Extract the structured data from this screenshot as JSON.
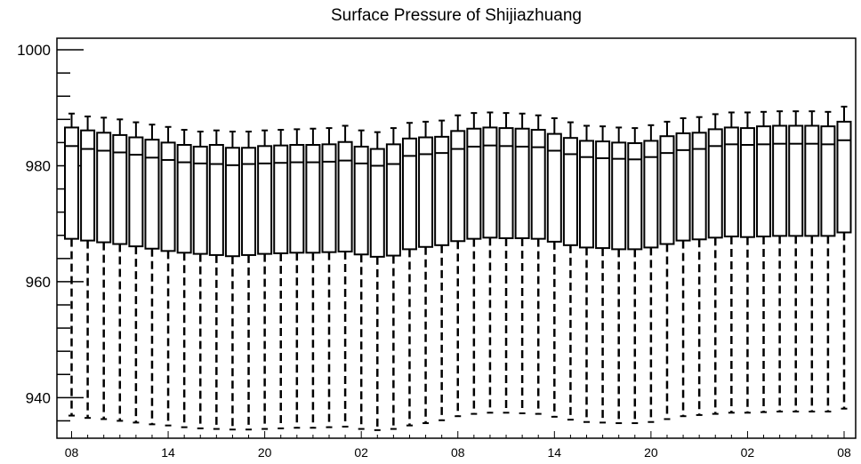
{
  "chart_data": {
    "type": "box",
    "title": "Surface Pressure of Shijiazhuang",
    "xlabel": "",
    "ylabel": "",
    "ylim": [
      933,
      1002
    ],
    "yticks": [
      940,
      960,
      980,
      1000
    ],
    "ytick_labels": [
      "940",
      "960",
      "980",
      "1000"
    ],
    "xtick_labels": [
      "08",
      "14",
      "20",
      "02",
      "08",
      "14",
      "20",
      "02",
      "08"
    ],
    "xtick_positions": [
      0,
      6,
      12,
      18,
      24,
      30,
      36,
      42,
      48
    ],
    "grid": false,
    "legend": "none",
    "whisker_style": "dashed",
    "boxes": [
      {
        "hour": 0,
        "min": 936.9,
        "q1": 967.4,
        "median": 983.4,
        "q3": 986.6,
        "max": 989.0
      },
      {
        "hour": 1,
        "min": 936.5,
        "q1": 967.1,
        "median": 982.9,
        "q3": 986.1,
        "max": 988.5
      },
      {
        "hour": 2,
        "min": 936.3,
        "q1": 966.8,
        "median": 982.6,
        "q3": 985.7,
        "max": 988.3
      },
      {
        "hour": 3,
        "min": 936.0,
        "q1": 966.5,
        "median": 982.3,
        "q3": 985.3,
        "max": 988.0
      },
      {
        "hour": 4,
        "min": 935.7,
        "q1": 966.1,
        "median": 981.9,
        "q3": 984.9,
        "max": 987.5
      },
      {
        "hour": 5,
        "min": 935.4,
        "q1": 965.7,
        "median": 981.4,
        "q3": 984.5,
        "max": 987.1
      },
      {
        "hour": 6,
        "min": 935.2,
        "q1": 965.3,
        "median": 981.0,
        "q3": 984.0,
        "max": 986.7
      },
      {
        "hour": 7,
        "min": 934.9,
        "q1": 965.0,
        "median": 980.6,
        "q3": 983.6,
        "max": 986.2
      },
      {
        "hour": 8,
        "min": 934.7,
        "q1": 964.8,
        "median": 980.4,
        "q3": 983.3,
        "max": 985.9
      },
      {
        "hour": 9,
        "min": 934.6,
        "q1": 964.6,
        "median": 980.3,
        "q3": 983.6,
        "max": 986.1
      },
      {
        "hour": 10,
        "min": 934.5,
        "q1": 964.4,
        "median": 980.1,
        "q3": 983.1,
        "max": 985.9
      },
      {
        "hour": 11,
        "min": 934.5,
        "q1": 964.6,
        "median": 980.3,
        "q3": 983.1,
        "max": 985.9
      },
      {
        "hour": 12,
        "min": 934.6,
        "q1": 964.8,
        "median": 980.4,
        "q3": 983.4,
        "max": 986.1
      },
      {
        "hour": 13,
        "min": 934.7,
        "q1": 964.9,
        "median": 980.5,
        "q3": 983.5,
        "max": 986.2
      },
      {
        "hour": 14,
        "min": 934.8,
        "q1": 965.0,
        "median": 980.6,
        "q3": 983.6,
        "max": 986.3
      },
      {
        "hour": 15,
        "min": 934.8,
        "q1": 965.0,
        "median": 980.6,
        "q3": 983.6,
        "max": 986.4
      },
      {
        "hour": 16,
        "min": 934.9,
        "q1": 965.1,
        "median": 980.7,
        "q3": 983.7,
        "max": 986.5
      },
      {
        "hour": 17,
        "min": 935.0,
        "q1": 965.2,
        "median": 980.9,
        "q3": 984.1,
        "max": 986.9
      },
      {
        "hour": 18,
        "min": 934.6,
        "q1": 964.7,
        "median": 980.4,
        "q3": 983.3,
        "max": 986.1
      },
      {
        "hour": 19,
        "min": 934.4,
        "q1": 964.3,
        "median": 980.0,
        "q3": 982.9,
        "max": 985.8
      },
      {
        "hour": 20,
        "min": 934.6,
        "q1": 964.5,
        "median": 980.3,
        "q3": 983.7,
        "max": 986.5
      },
      {
        "hour": 21,
        "min": 935.2,
        "q1": 965.6,
        "median": 981.7,
        "q3": 984.7,
        "max": 987.4
      },
      {
        "hour": 22,
        "min": 935.6,
        "q1": 966.0,
        "median": 982.0,
        "q3": 984.9,
        "max": 987.6
      },
      {
        "hour": 23,
        "min": 936.1,
        "q1": 966.3,
        "median": 982.2,
        "q3": 985.0,
        "max": 987.8
      },
      {
        "hour": 24,
        "min": 936.8,
        "q1": 967.0,
        "median": 982.9,
        "q3": 986.0,
        "max": 988.7
      },
      {
        "hour": 25,
        "min": 937.2,
        "q1": 967.4,
        "median": 983.3,
        "q3": 986.4,
        "max": 989.1
      },
      {
        "hour": 26,
        "min": 937.4,
        "q1": 967.6,
        "median": 983.5,
        "q3": 986.6,
        "max": 989.2
      },
      {
        "hour": 27,
        "min": 937.4,
        "q1": 967.5,
        "median": 983.4,
        "q3": 986.5,
        "max": 989.1
      },
      {
        "hour": 28,
        "min": 937.3,
        "q1": 967.5,
        "median": 983.3,
        "q3": 986.4,
        "max": 989.0
      },
      {
        "hour": 29,
        "min": 937.2,
        "q1": 967.4,
        "median": 983.2,
        "q3": 986.2,
        "max": 988.7
      },
      {
        "hour": 30,
        "min": 936.7,
        "q1": 966.9,
        "median": 982.6,
        "q3": 985.5,
        "max": 988.2
      },
      {
        "hour": 31,
        "min": 936.2,
        "q1": 966.3,
        "median": 982.0,
        "q3": 984.8,
        "max": 987.5
      },
      {
        "hour": 32,
        "min": 935.8,
        "q1": 965.9,
        "median": 981.5,
        "q3": 984.3,
        "max": 986.9
      },
      {
        "hour": 33,
        "min": 935.7,
        "q1": 965.8,
        "median": 981.3,
        "q3": 984.2,
        "max": 986.8
      },
      {
        "hour": 34,
        "min": 935.6,
        "q1": 965.6,
        "median": 981.2,
        "q3": 984.0,
        "max": 986.6
      },
      {
        "hour": 35,
        "min": 935.6,
        "q1": 965.6,
        "median": 981.1,
        "q3": 983.9,
        "max": 986.5
      },
      {
        "hour": 36,
        "min": 935.8,
        "q1": 965.9,
        "median": 981.5,
        "q3": 984.3,
        "max": 987.0
      },
      {
        "hour": 37,
        "min": 936.3,
        "q1": 966.5,
        "median": 982.2,
        "q3": 985.1,
        "max": 987.6
      },
      {
        "hour": 38,
        "min": 936.8,
        "q1": 967.1,
        "median": 982.7,
        "q3": 985.6,
        "max": 988.2
      },
      {
        "hour": 39,
        "min": 937.0,
        "q1": 967.3,
        "median": 982.9,
        "q3": 985.7,
        "max": 988.4
      },
      {
        "hour": 40,
        "min": 937.2,
        "q1": 967.6,
        "median": 983.4,
        "q3": 986.3,
        "max": 988.9
      },
      {
        "hour": 41,
        "min": 937.4,
        "q1": 967.8,
        "median": 983.7,
        "q3": 986.6,
        "max": 989.2
      },
      {
        "hour": 42,
        "min": 937.4,
        "q1": 967.7,
        "median": 983.6,
        "q3": 986.5,
        "max": 989.2
      },
      {
        "hour": 43,
        "min": 937.5,
        "q1": 967.8,
        "median": 983.7,
        "q3": 986.8,
        "max": 989.3
      },
      {
        "hour": 44,
        "min": 937.6,
        "q1": 967.9,
        "median": 983.8,
        "q3": 986.9,
        "max": 989.4
      },
      {
        "hour": 45,
        "min": 937.6,
        "q1": 967.9,
        "median": 983.8,
        "q3": 986.9,
        "max": 989.4
      },
      {
        "hour": 46,
        "min": 937.6,
        "q1": 967.9,
        "median": 983.8,
        "q3": 986.9,
        "max": 989.4
      },
      {
        "hour": 47,
        "min": 937.6,
        "q1": 967.9,
        "median": 983.7,
        "q3": 986.8,
        "max": 989.3
      },
      {
        "hour": 48,
        "min": 938.1,
        "q1": 968.5,
        "median": 984.4,
        "q3": 987.6,
        "max": 990.2
      }
    ]
  }
}
